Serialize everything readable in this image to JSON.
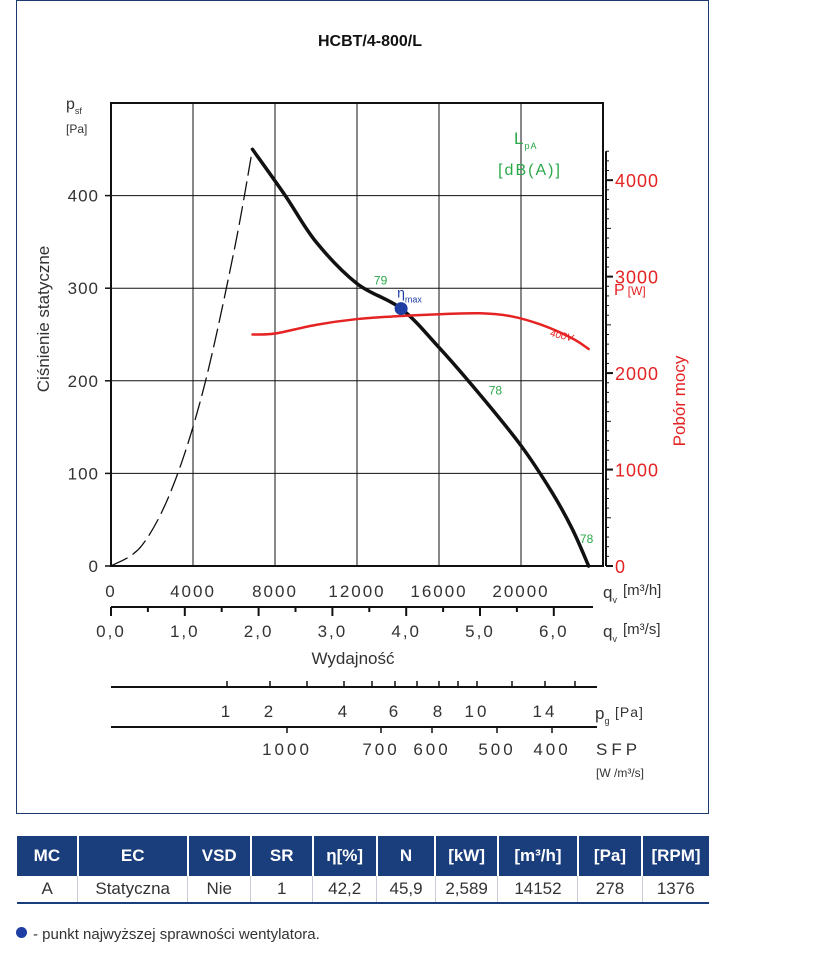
{
  "chart_data": {
    "type": "line",
    "title": "HCBT/4-800/L",
    "ylabel": "Ciśnienie statyczne",
    "y_symbol": "p",
    "y_symbol_sub": "sf",
    "y_unit": "[Pa]",
    "y2label": "Pobór mocy",
    "y2_symbol": "P",
    "y2_unit": "[W]",
    "xlabel": "Wydajność",
    "x_symbol": "q",
    "x_symbol_sub": "v",
    "x_unit_m3h": "[m³/h]",
    "x_unit_m3s": "[m³/s]",
    "noise_label_1": "L",
    "noise_label_sub": "pA",
    "noise_label_2": "[dB(A)]",
    "xlim": [
      0,
      24000
    ],
    "ylim": [
      0,
      500
    ],
    "y2lim": [
      0,
      4800
    ],
    "x_ticks_m3h": [
      "0",
      "4000",
      "8000",
      "12000",
      "16000",
      "20000"
    ],
    "x_ticks_m3s": [
      "0,0",
      "1,0",
      "2,0",
      "3,0",
      "4,0",
      "5,0",
      "6,0"
    ],
    "y_ticks": [
      "0",
      "100",
      "200",
      "300",
      "400"
    ],
    "y2_ticks": [
      "0",
      "1000",
      "2000",
      "3000",
      "4000"
    ],
    "grid": true,
    "series": [
      {
        "key": "pressure_unstable",
        "style": "dashed",
        "color": "#111111",
        "x": [
          0,
          1500,
          3000,
          4500,
          6000,
          6900
        ],
        "y": [
          0,
          22,
          85,
          190,
          340,
          450
        ]
      },
      {
        "key": "pressure",
        "style": "solid",
        "color": "#111111",
        "x": [
          6900,
          8500,
          10000,
          12000,
          14152,
          16000,
          18000,
          20000,
          21500,
          22500,
          23300
        ],
        "y": [
          450,
          400,
          350,
          305,
          278,
          236,
          185,
          130,
          80,
          40,
          0
        ]
      },
      {
        "name": "400V",
        "style": "solid",
        "color": "#e52323",
        "axis": "y2",
        "x": [
          6900,
          8000,
          10000,
          12000,
          14000,
          16000,
          18000,
          19500,
          21000,
          22500,
          23300
        ],
        "y": [
          2400,
          2410,
          2500,
          2560,
          2590,
          2610,
          2620,
          2590,
          2500,
          2360,
          2250
        ]
      }
    ],
    "noise_labels": [
      {
        "text": "79",
        "x": 13150,
        "y": 304
      },
      {
        "text": "78",
        "x": 18750,
        "y": 185
      },
      {
        "text": "78",
        "x": 23200,
        "y": 25
      }
    ],
    "max_efficiency_point": {
      "x": 14152,
      "y": 278,
      "label": "η",
      "label_sub": "max"
    },
    "dynamic_pressure_scale": {
      "label": "p",
      "label_sub": "g",
      "unit": "[Pa]",
      "ticks": [
        "1",
        "2",
        "4",
        "6",
        "8",
        "10",
        "14"
      ]
    },
    "sfp_scale": {
      "label": "SFP",
      "unit": "[W /m³/s]",
      "ticks": [
        "1000",
        "700",
        "600",
        "500",
        "400"
      ]
    }
  },
  "table": {
    "headers": [
      "MC",
      "EC",
      "VSD",
      "SR",
      "η[%]",
      "N",
      "[kW]",
      "[m³/h]",
      "[Pa]",
      "[RPM]"
    ],
    "row": [
      "A",
      "Statyczna",
      "Nie",
      "1",
      "42,2",
      "45,9",
      "2,589",
      "14152",
      "278",
      "1376"
    ]
  },
  "legend_note": "- punkt najwyższej sprawności wentylatora.",
  "colors": {
    "header_bg": "#1a3d7c",
    "noise_green": "#2aa84a",
    "power_red": "#e52323",
    "point_blue": "#1f3ea3"
  }
}
